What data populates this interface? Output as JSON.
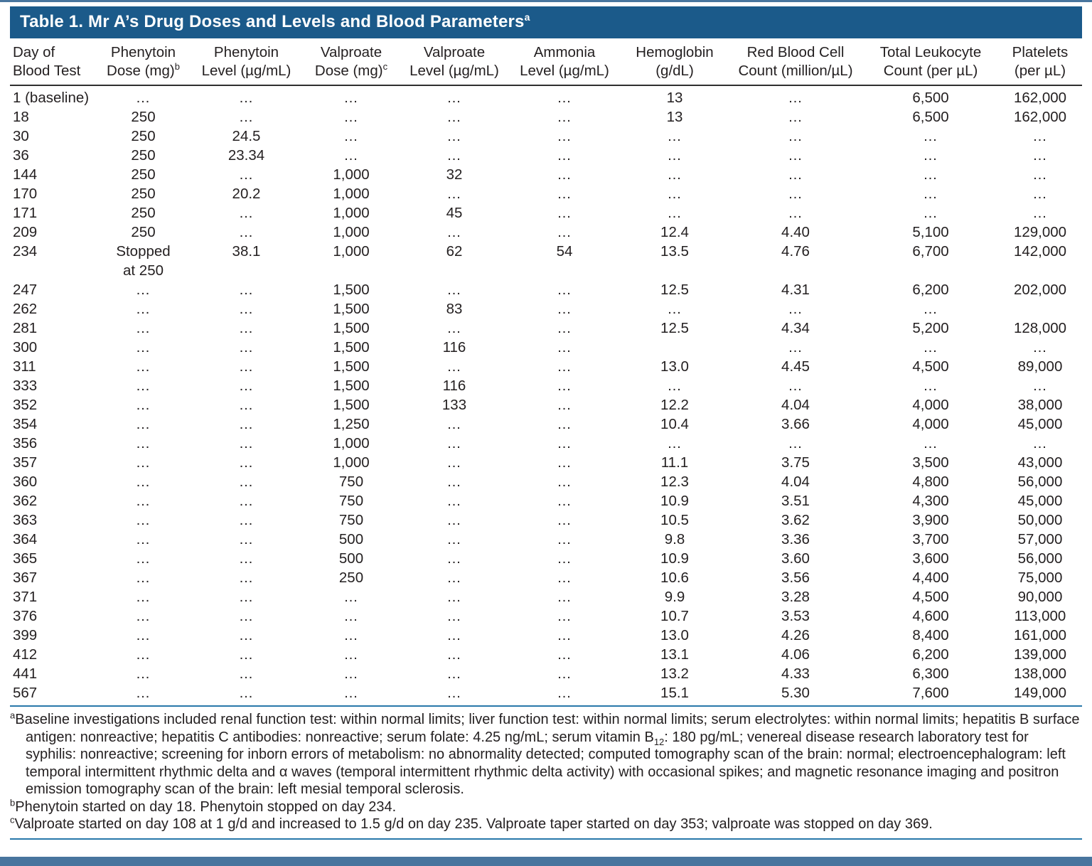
{
  "colors": {
    "title_bar": "#1b5a8a",
    "rule_blue": "#2878aa",
    "header_rule": "#2f2f2f",
    "text": "#231f20",
    "band": "#48759e"
  },
  "title": {
    "text": "Table 1. Mr A’s Drug Doses and Levels and Blood Parameters",
    "sup": "a"
  },
  "table": {
    "columns": [
      {
        "line1": "Day of",
        "line2": "Blood Test",
        "sup": ""
      },
      {
        "line1": "Phenytoin",
        "line2": "Dose (mg)",
        "sup": "b"
      },
      {
        "line1": "Phenytoin",
        "line2": "Level (µg/mL)",
        "sup": ""
      },
      {
        "line1": "Valproate",
        "line2": "Dose (mg)",
        "sup": "c"
      },
      {
        "line1": "Valproate",
        "line2": "Level (µg/mL)",
        "sup": ""
      },
      {
        "line1": "Ammonia",
        "line2": "Level (µg/mL)",
        "sup": ""
      },
      {
        "line1": "Hemoglobin",
        "line2": "(g/dL)",
        "sup": ""
      },
      {
        "line1": "Red Blood Cell",
        "line2": "Count (million/µL)",
        "sup": ""
      },
      {
        "line1": "Total Leukocyte",
        "line2": "Count (per µL)",
        "sup": ""
      },
      {
        "line1": "Platelets",
        "line2": "(per µL)",
        "sup": ""
      }
    ],
    "rows": [
      [
        "1 (baseline)",
        "…",
        "…",
        "…",
        "…",
        "…",
        "13",
        "…",
        "6,500",
        "162,000"
      ],
      [
        "18",
        "250",
        "…",
        "…",
        "…",
        "…",
        "13",
        "…",
        "6,500",
        "162,000"
      ],
      [
        "30",
        "250",
        "24.5",
        "…",
        "…",
        "…",
        "…",
        "…",
        "…",
        "…"
      ],
      [
        "36",
        "250",
        "23.34",
        "…",
        "…",
        "…",
        "…",
        "…",
        "…",
        "…"
      ],
      [
        "144",
        "250",
        "…",
        "1,000",
        "32",
        "…",
        "…",
        "…",
        "…",
        "…"
      ],
      [
        "170",
        "250",
        "20.2",
        "1,000",
        "…",
        "…",
        "…",
        "…",
        "…",
        "…"
      ],
      [
        "171",
        "250",
        "…",
        "1,000",
        "45",
        "…",
        "…",
        "…",
        "…",
        "…"
      ],
      [
        "209",
        "250",
        "…",
        "1,000",
        "…",
        "…",
        "12.4",
        "4.40",
        "5,100",
        "129,000"
      ],
      [
        "234",
        "Stopped\nat 250",
        "38.1",
        "1,000",
        "62",
        "54",
        "13.5",
        "4.76",
        "6,700",
        "142,000"
      ],
      [
        "247",
        "…",
        "…",
        "1,500",
        "…",
        "…",
        "12.5",
        "4.31",
        "6,200",
        "202,000"
      ],
      [
        "262",
        "…",
        "…",
        "1,500",
        "83",
        "…",
        "…",
        "…",
        "…",
        ""
      ],
      [
        "281",
        "…",
        "…",
        "1,500",
        "…",
        "…",
        "12.5",
        "4.34",
        "5,200",
        "128,000"
      ],
      [
        "300",
        "…",
        "…",
        "1,500",
        "116",
        "…",
        "",
        "…",
        "…",
        "…"
      ],
      [
        "311",
        "…",
        "…",
        "1,500",
        "…",
        "…",
        "13.0",
        "4.45",
        "4,500",
        "89,000"
      ],
      [
        "333",
        "…",
        "…",
        "1,500",
        "116",
        "…",
        "…",
        "…",
        "…",
        "…"
      ],
      [
        "352",
        "…",
        "…",
        "1,500",
        "133",
        "…",
        "12.2",
        "4.04",
        "4,000",
        "38,000"
      ],
      [
        "354",
        "…",
        "…",
        "1,250",
        "…",
        "…",
        "10.4",
        "3.66",
        "4,000",
        "45,000"
      ],
      [
        "356",
        "…",
        "…",
        "1,000",
        "…",
        "…",
        "…",
        "…",
        "…",
        "…"
      ],
      [
        "357",
        "…",
        "…",
        "1,000",
        "…",
        "…",
        "11.1",
        "3.75",
        "3,500",
        "43,000"
      ],
      [
        "360",
        "…",
        "…",
        "750",
        "…",
        "…",
        "12.3",
        "4.04",
        "4,800",
        "56,000"
      ],
      [
        "362",
        "…",
        "…",
        "750",
        "…",
        "…",
        "10.9",
        "3.51",
        "4,300",
        "45,000"
      ],
      [
        "363",
        "…",
        "…",
        "750",
        "…",
        "…",
        "10.5",
        "3.62",
        "3,900",
        "50,000"
      ],
      [
        "364",
        "…",
        "…",
        "500",
        "…",
        "…",
        "9.8",
        "3.36",
        "3,700",
        "57,000"
      ],
      [
        "365",
        "…",
        "…",
        "500",
        "…",
        "…",
        "10.9",
        "3.60",
        "3,600",
        "56,000"
      ],
      [
        "367",
        "…",
        "…",
        "250",
        "…",
        "…",
        "10.6",
        "3.56",
        "4,400",
        "75,000"
      ],
      [
        "371",
        "…",
        "…",
        "…",
        "…",
        "…",
        "9.9",
        "3.28",
        "4,500",
        "90,000"
      ],
      [
        "376",
        "…",
        "…",
        "…",
        "…",
        "…",
        "10.7",
        "3.53",
        "4,600",
        "113,000"
      ],
      [
        "399",
        "…",
        "…",
        "…",
        "…",
        "…",
        "13.0",
        "4.26",
        "8,400",
        "161,000"
      ],
      [
        "412",
        "…",
        "…",
        "…",
        "…",
        "…",
        "13.1",
        "4.06",
        "6,200",
        "139,000"
      ],
      [
        "441",
        "…",
        "…",
        "…",
        "…",
        "…",
        "13.2",
        "4.33",
        "6,300",
        "138,000"
      ],
      [
        "567",
        "…",
        "…",
        "…",
        "…",
        "…",
        "15.1",
        "5.30",
        "7,600",
        "149,000"
      ]
    ]
  },
  "footnotes": {
    "a": {
      "sup": "a",
      "before": "Baseline investigations included renal function test: within normal limits; liver function test: within normal limits; serum electrolytes: within normal limits; hepatitis B surface antigen: nonreactive; hepatitis C antibodies: nonreactive; serum folate: 4.25 ng/mL; serum vitamin B",
      "sub": "12",
      "after": ": 180 pg/mL; venereal disease research laboratory test for syphilis: nonreactive; screening for inborn errors of metabolism: no abnormality detected; computed tomography scan of the brain: normal; electroencephalogram: left temporal intermittent rhythmic delta and α waves (temporal intermittent rhythmic delta activity) with occasional spikes; and magnetic resonance imaging and positron emission tomography scan of the brain: left mesial temporal sclerosis."
    },
    "b": {
      "sup": "b",
      "text": "Phenytoin started on day 18. Phenytoin stopped on day 234."
    },
    "c": {
      "sup": "c",
      "text": "Valproate started on day 108 at 1 g/d and increased to 1.5 g/d on day 235. Valproate taper started on day 353; valproate was stopped on day 369."
    }
  }
}
